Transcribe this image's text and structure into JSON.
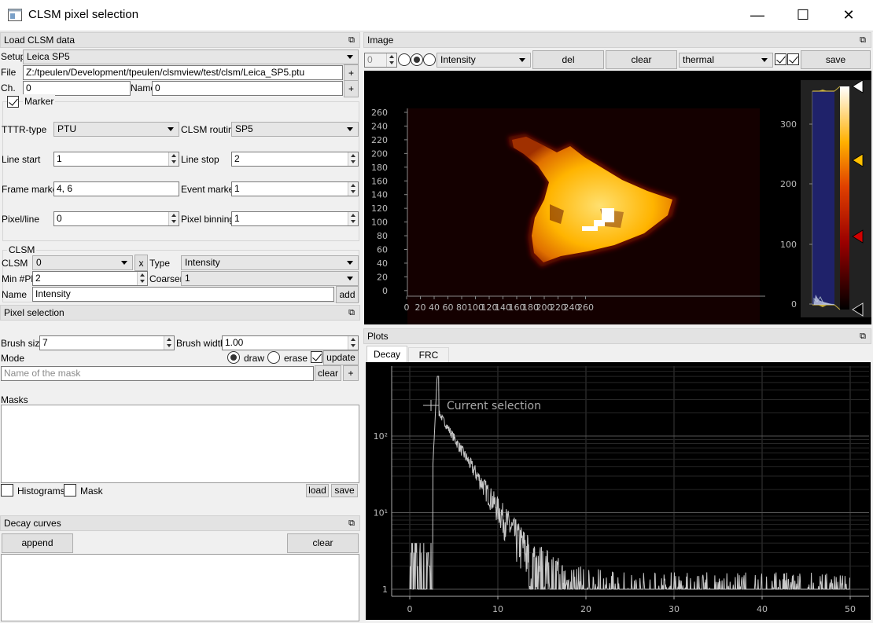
{
  "window": {
    "title": "CLSM pixel selection"
  },
  "load_panel": {
    "title": "Load CLSM data",
    "setup_label": "Setup",
    "setup_value": "Leica SP5",
    "file_label": "File",
    "file_value": "Z:/tpeulen/Development/tpeulen/clsmview/test/clsm/Leica_SP5.ptu",
    "ch_label": "Ch.",
    "ch_value": "0",
    "name_label": "Name",
    "name_value": "0",
    "marker_label": "Marker",
    "tttr_label": "TTTR-type",
    "tttr_value": "PTU",
    "routine_label": "CLSM routine",
    "routine_value": "SP5",
    "line_start_label": "Line start",
    "line_start_value": "1",
    "line_stop_label": "Line stop",
    "line_stop_value": "2",
    "frame_marker_label": "Frame marker",
    "frame_marker_value": "4, 6",
    "event_marker_label": "Event marker",
    "event_marker_value": "1",
    "pixel_line_label": "Pixel/line",
    "pixel_line_value": "0",
    "pixel_binning_label": "Pixel binning",
    "pixel_binning_value": "1",
    "clsm_group_label": "CLSM",
    "clsm_label": "CLSM",
    "clsm_value": "0",
    "x_label": "x",
    "type_label": "Type",
    "type_value": "Intensity",
    "minph_label": "Min #Ph",
    "minph_value": "2",
    "coarsen_label": "Coarsen",
    "coarsen_value": "1",
    "name2_label": "Name",
    "name2_value": "Intensity",
    "add_label": "add",
    "plus": "+"
  },
  "pixel_panel": {
    "title": "Pixel selection",
    "brush_size_label": "Brush size",
    "brush_size_value": "7",
    "brush_width_label": "Brush width",
    "brush_width_value": "1.00",
    "mode_label": "Mode",
    "draw_label": "draw",
    "erase_label": "erase",
    "update_label": "update",
    "mask_placeholder": "Name of the mask",
    "clear_label": "clear",
    "plus": "+",
    "masks_label": "Masks",
    "histograms_label": "Histograms",
    "mask_label": "Mask",
    "load_label": "load",
    "save_label": "save"
  },
  "decay_panel": {
    "title": "Decay curves",
    "append_label": "append",
    "clear_label": "clear"
  },
  "image_panel": {
    "title": "Image",
    "spin_value": "0",
    "intensity_value": "Intensity",
    "del_label": "del",
    "clear_label": "clear",
    "colormap_value": "thermal",
    "save_label": "save",
    "y_ticks": [
      "260",
      "240",
      "220",
      "200",
      "180",
      "160",
      "140",
      "120",
      "100",
      "80",
      "60",
      "40",
      "20",
      "0"
    ],
    "x_ticks": [
      "0",
      "20",
      "40",
      "60",
      "80",
      "100",
      "120",
      "140",
      "160",
      "180",
      "200",
      "220",
      "240",
      "260"
    ],
    "hist_ticks": [
      "300",
      "200",
      "100",
      "0"
    ]
  },
  "plots_panel": {
    "title": "Plots",
    "tabs": [
      "Decay",
      "FRC"
    ],
    "legend": "Current selection",
    "y_ticks": [
      "10²",
      "10¹",
      "1"
    ],
    "x_ticks": [
      "0",
      "10",
      "20",
      "30",
      "40",
      "50"
    ]
  },
  "colors": {
    "accent": "#ffd600",
    "marker_red": "#d00000",
    "curve": "#c8c8c8"
  }
}
